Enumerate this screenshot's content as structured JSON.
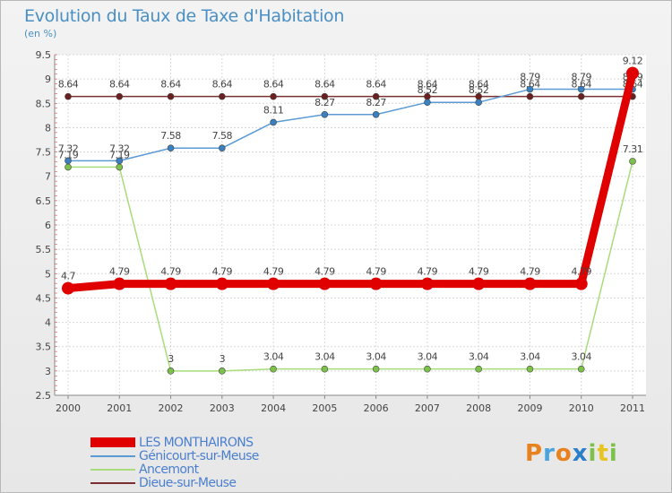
{
  "title": "Evolution du Taux de Taxe d'Habitation",
  "unit_label": "(en %)",
  "logo_text": "Proxiti",
  "chart_data": {
    "type": "line",
    "x": [
      "2000",
      "2001",
      "2002",
      "2003",
      "2004",
      "2005",
      "2006",
      "2007",
      "2008",
      "2009",
      "2010",
      "2011"
    ],
    "ylim": [
      2.5,
      9.5
    ],
    "yticks": [
      "2.5",
      "3",
      "3.5",
      "4",
      "4.5",
      "5",
      "5.5",
      "6",
      "6.5",
      "7",
      "7.5",
      "8",
      "8.5",
      "9",
      "9.5"
    ],
    "grid": true,
    "legend_position": "bottom-left",
    "series": [
      {
        "name": "Dieue-sur-Meuse",
        "color": "#7a3030",
        "marker": "#6b2020",
        "values": [
          8.64,
          8.64,
          8.64,
          8.64,
          8.64,
          8.64,
          8.64,
          8.64,
          8.64,
          8.64,
          8.64,
          8.64
        ],
        "labels": [
          "8.64",
          "8.64",
          "8.64",
          "8.64",
          "8.64",
          "8.64",
          "8.64",
          "8.64",
          "8.64",
          "8.64",
          "8.64",
          "8.64"
        ]
      },
      {
        "name": "Génicourt-sur-Meuse",
        "color": "#5b9bd5",
        "marker": "#3a7fc0",
        "values": [
          7.32,
          7.32,
          7.58,
          7.58,
          8.11,
          8.27,
          8.27,
          8.52,
          8.52,
          8.79,
          8.79,
          8.79
        ],
        "labels": [
          "7.32",
          "7.32",
          "7.58",
          "7.58",
          "8.11",
          "8.27",
          "8.27",
          "8.52",
          "8.52",
          "8.79",
          "8.79",
          "8.79"
        ]
      },
      {
        "name": "Ancemont",
        "color": "#a8dc7a",
        "marker": "#7cc24a",
        "values": [
          7.19,
          7.19,
          3,
          3,
          3.04,
          3.04,
          3.04,
          3.04,
          3.04,
          3.04,
          3.04,
          7.31
        ],
        "labels": [
          "7.19",
          "7.19",
          "3",
          "3",
          "3.04",
          "3.04",
          "3.04",
          "3.04",
          "3.04",
          "3.04",
          "3.04",
          "7.31"
        ]
      },
      {
        "name": "LES MONTHAIRONS",
        "color": "#e00000",
        "marker": "#e00000",
        "values": [
          4.7,
          4.79,
          4.79,
          4.79,
          4.79,
          4.79,
          4.79,
          4.79,
          4.79,
          4.79,
          4.79,
          9.12
        ],
        "labels": [
          "4.7",
          "4.79",
          "4.79",
          "4.79",
          "4.79",
          "4.79",
          "4.79",
          "4.79",
          "4.79",
          "4.79",
          "4.79",
          "9.12"
        ]
      }
    ]
  },
  "legend": [
    {
      "name": "LES MONTHAIRONS",
      "color": "#e00000"
    },
    {
      "name": "Génicourt-sur-Meuse",
      "color": "#5b9bd5"
    },
    {
      "name": "Ancemont",
      "color": "#a8dc7a"
    },
    {
      "name": "Dieue-sur-Meuse",
      "color": "#7a3030"
    }
  ]
}
